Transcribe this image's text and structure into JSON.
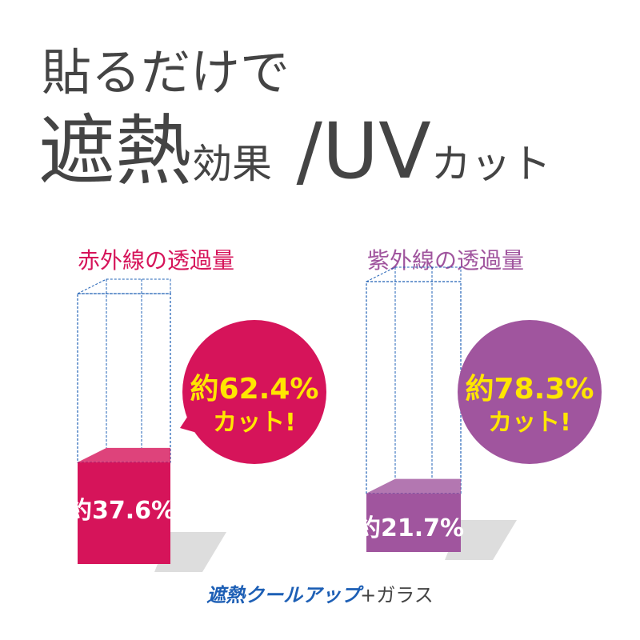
{
  "header": {
    "line1": "貼るだけで",
    "line2": [
      "遮熱",
      "効果",
      " /UV",
      "カット"
    ]
  },
  "chart_data": [
    {
      "type": "bar",
      "title": "赤外線の透過量",
      "values": [
        37.6
      ],
      "value_labels": [
        "約37.6%"
      ],
      "color": "#d6145a",
      "ylim": [
        0,
        100
      ],
      "cut": {
        "value": 62.4,
        "label": "約62.4%"
      },
      "cut_text": "カット!"
    },
    {
      "type": "bar",
      "title": "紫外線の透過量",
      "values": [
        21.7
      ],
      "value_labels": [
        "約21.7%"
      ],
      "color": "#a0559e",
      "ylim": [
        0,
        100
      ],
      "cut": {
        "value": 78.3,
        "label": "約78.3%"
      },
      "cut_text": "カット!"
    }
  ],
  "footer": {
    "brand": "遮熱クールアップ",
    "suffix": "+ガラス"
  }
}
